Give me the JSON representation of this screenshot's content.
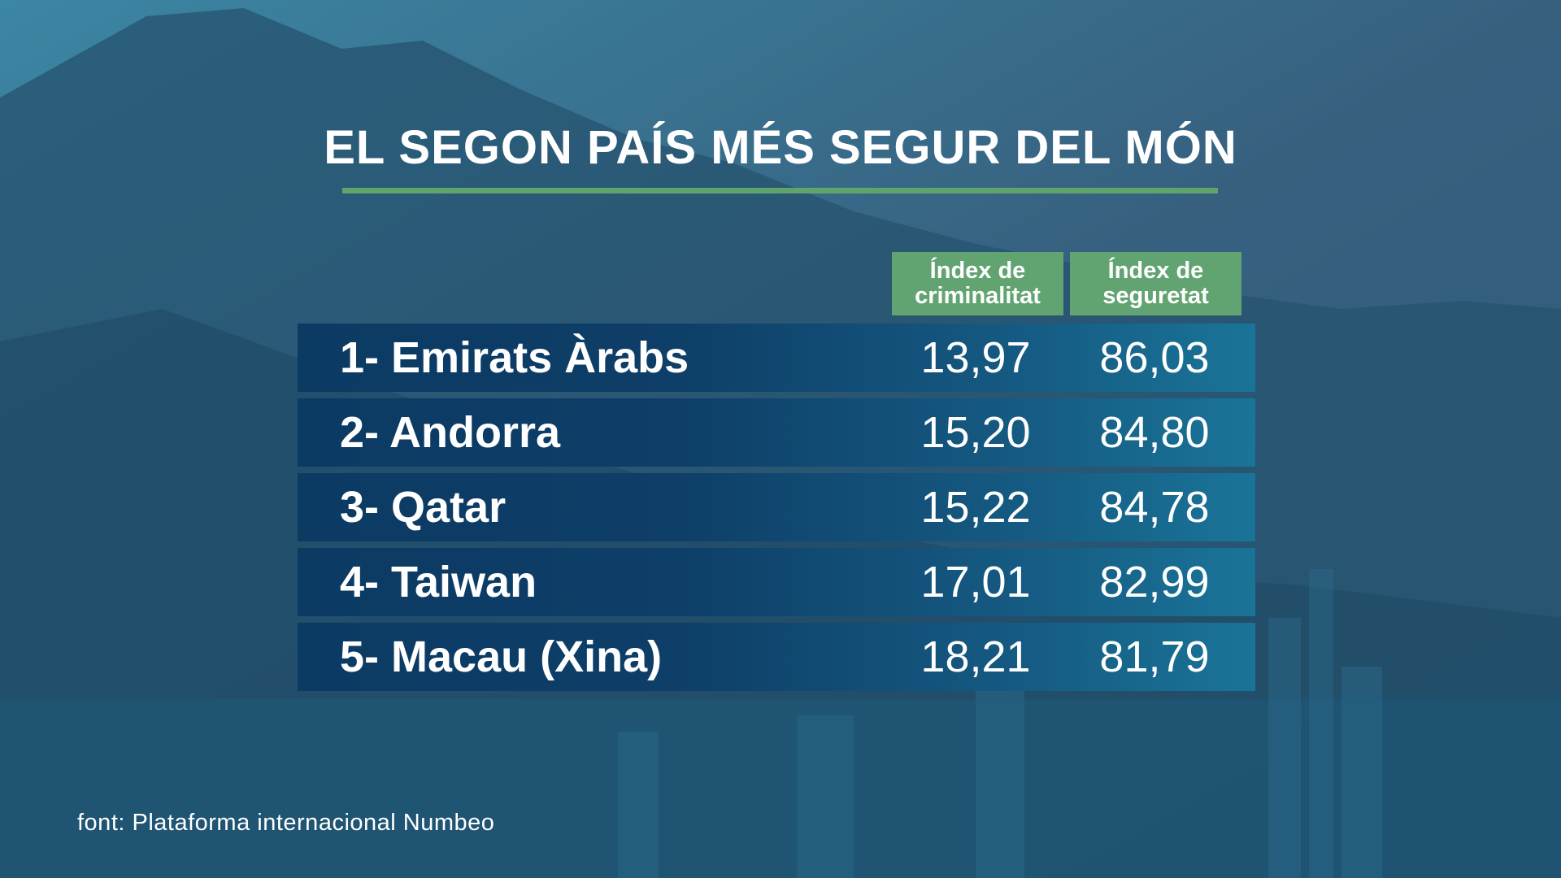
{
  "title": "EL SEGON PAÍS MÉS SEGUR DEL MÓN",
  "colors": {
    "accent_green": "#62a471",
    "row_dark": "#0b3a63",
    "row_light": "#1a7498"
  },
  "chart_data": {
    "type": "table",
    "title": "EL SEGON PAÍS MÉS SEGUR DEL MÓN",
    "columns": [
      {
        "line1": "Índex de",
        "line2": "criminalitat"
      },
      {
        "line1": "Índex de",
        "line2": "seguretat"
      }
    ],
    "rows": [
      {
        "label": "1- Emirats Àrabs",
        "crime": "13,97",
        "safety": "86,03"
      },
      {
        "label": "2- Andorra",
        "crime": "15,20",
        "safety": "84,80"
      },
      {
        "label": "3- Qatar",
        "crime": "15,22",
        "safety": "84,78"
      },
      {
        "label": "4- Taiwan",
        "crime": "17,01",
        "safety": "82,99"
      },
      {
        "label": "5- Macau (Xina)",
        "crime": "18,21",
        "safety": "81,79"
      }
    ]
  },
  "source": "font: Plataforma internacional Numbeo"
}
